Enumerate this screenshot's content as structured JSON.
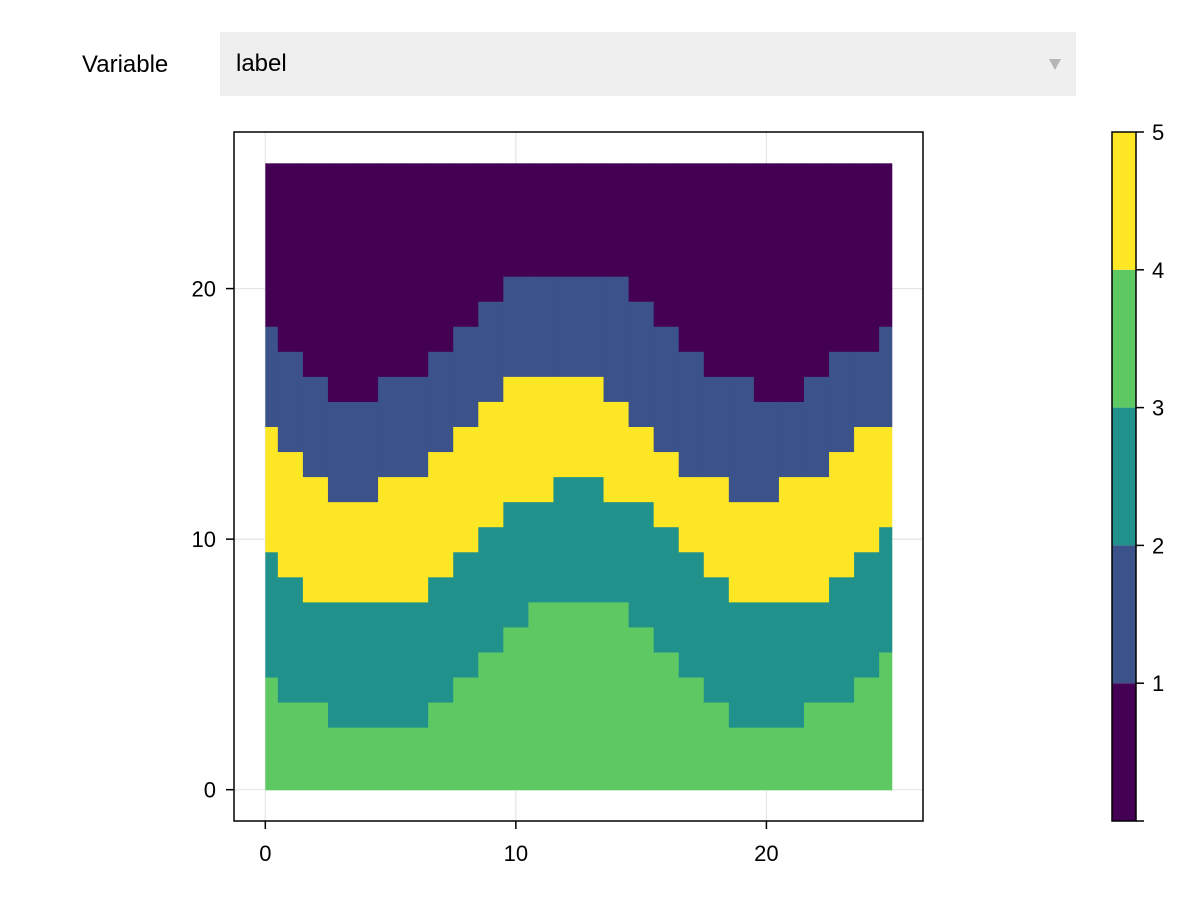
{
  "menu": {
    "variable_label": "Variable",
    "selected_value": "label",
    "arrow_icon": "triangle-down-icon"
  },
  "chart_data": {
    "type": "heatmap",
    "title": "",
    "xlabel": "",
    "ylabel": "",
    "xlim": [
      -1.25,
      26.25
    ],
    "ylim": [
      -1.25,
      26.25
    ],
    "grid": true,
    "x_ticks": [
      0,
      10,
      20
    ],
    "y_ticks": [
      0,
      10,
      20
    ],
    "cell_size": 1,
    "x_start": 0,
    "y_start": 0,
    "columns": 26,
    "rows": 26,
    "colormap": "viridis",
    "colorbar": {
      "levels": [
        0,
        1,
        2,
        3,
        4,
        5
      ],
      "ticks": [
        1,
        2,
        3,
        4,
        5
      ],
      "colors": [
        "#440154",
        "#3b528b",
        "#21918c",
        "#5ec962",
        "#fde725"
      ]
    },
    "boundaries": {
      "description_keys": [
        "green_top",
        "teal_top",
        "yellow_top",
        "blue_top"
      ],
      "green_top": [
        5,
        4,
        4,
        3,
        3,
        3,
        3,
        4,
        5,
        6,
        7,
        8,
        8,
        8,
        8,
        7,
        6,
        5,
        4,
        3,
        3,
        3,
        4,
        4,
        5,
        6
      ],
      "teal_top": [
        10,
        9,
        8,
        8,
        8,
        8,
        8,
        9,
        10,
        11,
        12,
        12,
        13,
        13,
        12,
        12,
        11,
        10,
        9,
        8,
        8,
        8,
        8,
        9,
        10,
        11
      ],
      "yellow_top": [
        15,
        14,
        13,
        12,
        12,
        13,
        13,
        14,
        15,
        16,
        17,
        17,
        17,
        17,
        16,
        15,
        14,
        13,
        13,
        12,
        12,
        13,
        13,
        14,
        15,
        15
      ],
      "blue_top": [
        19,
        18,
        17,
        16,
        16,
        17,
        17,
        18,
        19,
        20,
        21,
        21,
        21,
        21,
        21,
        20,
        19,
        18,
        17,
        17,
        16,
        16,
        17,
        18,
        18,
        19
      ],
      "top": 26
    },
    "band_values": [
      3.5,
      2.5,
      4.5,
      1.5,
      0.5
    ]
  }
}
